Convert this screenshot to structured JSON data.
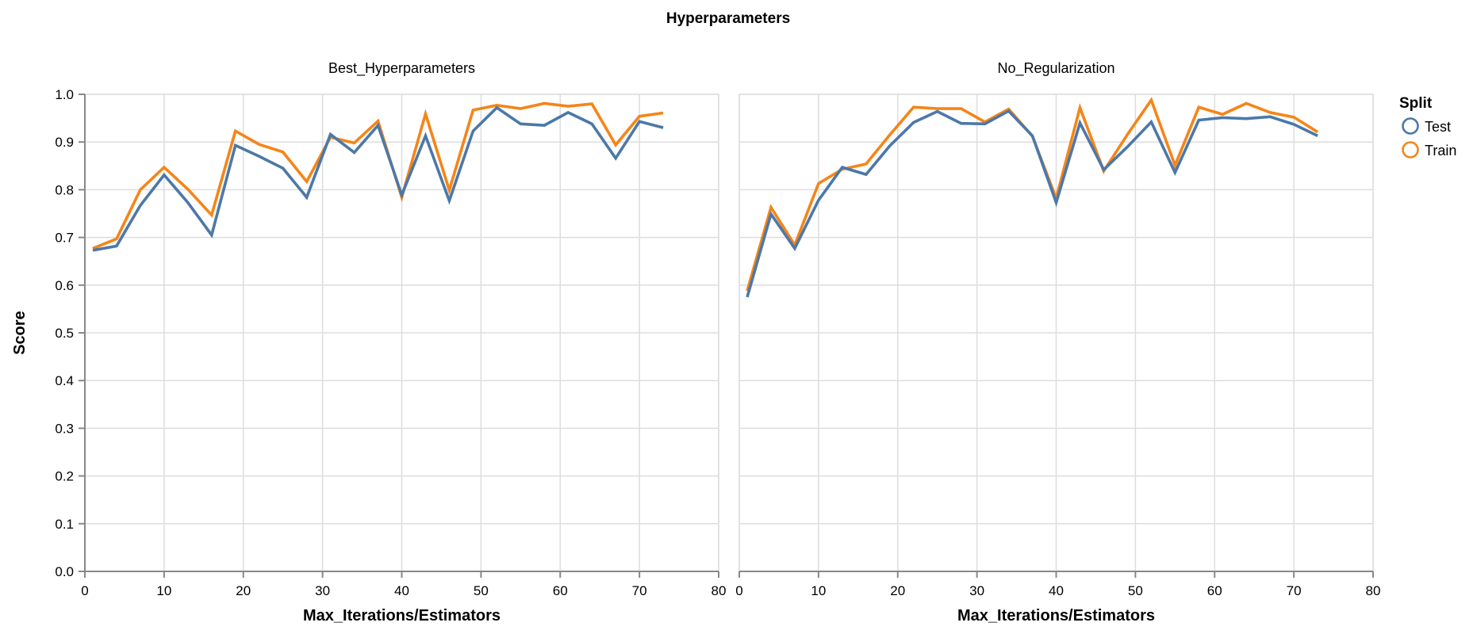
{
  "chart_data": {
    "type": "line",
    "title": "Hyperparameters",
    "xlabel": "Max_Iterations/Estimators",
    "ylabel": "Score",
    "xlim": [
      0,
      80
    ],
    "ylim": [
      0,
      1
    ],
    "x_ticks": [
      0,
      10,
      20,
      30,
      40,
      50,
      60,
      70,
      80
    ],
    "y_ticks": [
      "0.0",
      "0.1",
      "0.2",
      "0.3",
      "0.4",
      "0.5",
      "0.6",
      "0.7",
      "0.8",
      "0.9",
      "1.0"
    ],
    "grid": true,
    "legend": {
      "title": "Split",
      "position": "right",
      "entries": [
        {
          "name": "Test",
          "color": "#4c78a8"
        },
        {
          "name": "Train",
          "color": "#f58518"
        }
      ]
    },
    "facets": [
      {
        "name": "Best_Hyperparameters",
        "x": [
          1,
          4,
          7,
          10,
          13,
          16,
          19,
          22,
          25,
          28,
          31,
          34,
          37,
          40,
          43,
          46,
          49,
          52,
          55,
          58,
          61,
          64,
          67,
          70,
          73
        ],
        "series": [
          {
            "name": "Test",
            "values": [
              0.673,
              0.682,
              0.767,
              0.831,
              0.773,
              0.705,
              0.893,
              0.87,
              0.845,
              0.784,
              0.916,
              0.878,
              0.935,
              0.789,
              0.913,
              0.777,
              0.923,
              0.972,
              0.938,
              0.935,
              0.962,
              0.938,
              0.866,
              0.943,
              0.93
            ]
          },
          {
            "name": "Train",
            "values": [
              0.677,
              0.697,
              0.8,
              0.847,
              0.801,
              0.747,
              0.923,
              0.895,
              0.879,
              0.817,
              0.91,
              0.898,
              0.944,
              0.784,
              0.959,
              0.799,
              0.967,
              0.977,
              0.97,
              0.981,
              0.975,
              0.98,
              0.894,
              0.954,
              0.961
            ]
          }
        ]
      },
      {
        "name": "No_Regularization",
        "x": [
          1,
          4,
          7,
          10,
          13,
          16,
          19,
          22,
          25,
          28,
          31,
          34,
          37,
          40,
          43,
          46,
          49,
          52,
          55,
          58,
          61,
          64,
          67,
          70,
          73
        ],
        "series": [
          {
            "name": "Test",
            "values": [
              0.575,
              0.749,
              0.677,
              0.778,
              0.847,
              0.832,
              0.892,
              0.941,
              0.964,
              0.939,
              0.938,
              0.965,
              0.913,
              0.773,
              0.94,
              0.842,
              0.89,
              0.942,
              0.836,
              0.946,
              0.951,
              0.949,
              0.953,
              0.937,
              0.913
            ]
          },
          {
            "name": "Train",
            "values": [
              0.588,
              0.763,
              0.684,
              0.813,
              0.843,
              0.854,
              0.915,
              0.973,
              0.97,
              0.97,
              0.942,
              0.969,
              0.912,
              0.782,
              0.972,
              0.839,
              0.916,
              0.988,
              0.851,
              0.973,
              0.958,
              0.981,
              0.962,
              0.952,
              0.921
            ]
          }
        ]
      }
    ]
  }
}
